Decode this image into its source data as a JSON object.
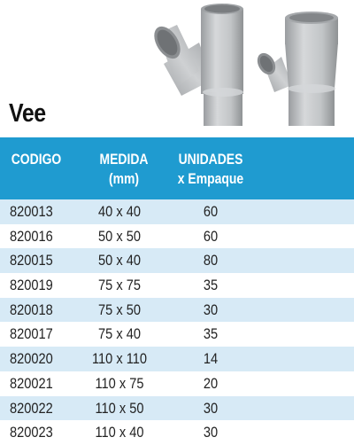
{
  "title": "Vee",
  "headers": {
    "codigo": "CODIGO",
    "medida": [
      "MEDIDA",
      "(mm)"
    ],
    "unidades": [
      "UNIDADES",
      "x Empaque"
    ]
  },
  "rows": [
    {
      "codigo": "820013",
      "medida": "40 x 40",
      "unidades": "60"
    },
    {
      "codigo": "820016",
      "medida": "50 x 50",
      "unidades": "60"
    },
    {
      "codigo": "820015",
      "medida": "50 x 40",
      "unidades": "80"
    },
    {
      "codigo": "820019",
      "medida": "75 x 75",
      "unidades": "35"
    },
    {
      "codigo": "820018",
      "medida": "75 x 50",
      "unidades": "30"
    },
    {
      "codigo": "820017",
      "medida": "75 x 40",
      "unidades": "35"
    },
    {
      "codigo": "820020",
      "medida": "110 x 110",
      "unidades": "14"
    },
    {
      "codigo": "820021",
      "medida": "110 x 75",
      "unidades": "20"
    },
    {
      "codigo": "820022",
      "medida": "110 x 50",
      "unidades": "30"
    },
    {
      "codigo": "820023",
      "medida": "110 x 40",
      "unidades": "30"
    }
  ],
  "colors": {
    "header_bg": "#1f9bd0",
    "row_alt_bg": "#d7eaf6",
    "fitting_gray": "#b9bcbe"
  },
  "images": [
    "vee-fitting-large",
    "vee-fitting-small"
  ]
}
